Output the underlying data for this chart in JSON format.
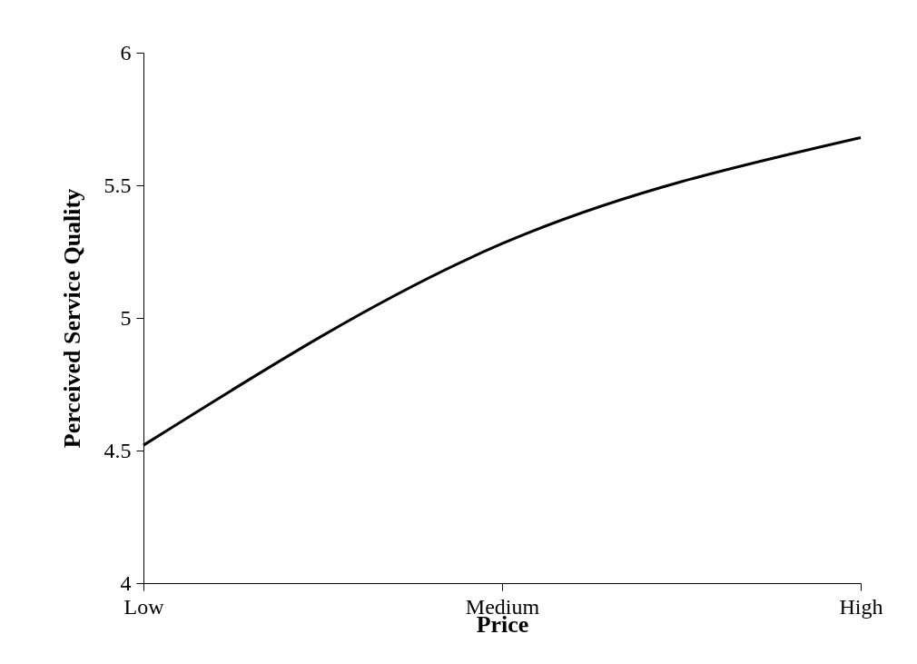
{
  "chart_data": {
    "type": "line",
    "xlabel": "Price",
    "ylabel": "Perceived Service Quality",
    "categories": [
      "Low",
      "Medium",
      "High"
    ],
    "values": [
      4.52,
      5.28,
      5.68
    ],
    "color": "#000000",
    "ylim": [
      4,
      6
    ],
    "yticks": [
      4,
      4.5,
      5,
      5.5,
      6
    ]
  }
}
